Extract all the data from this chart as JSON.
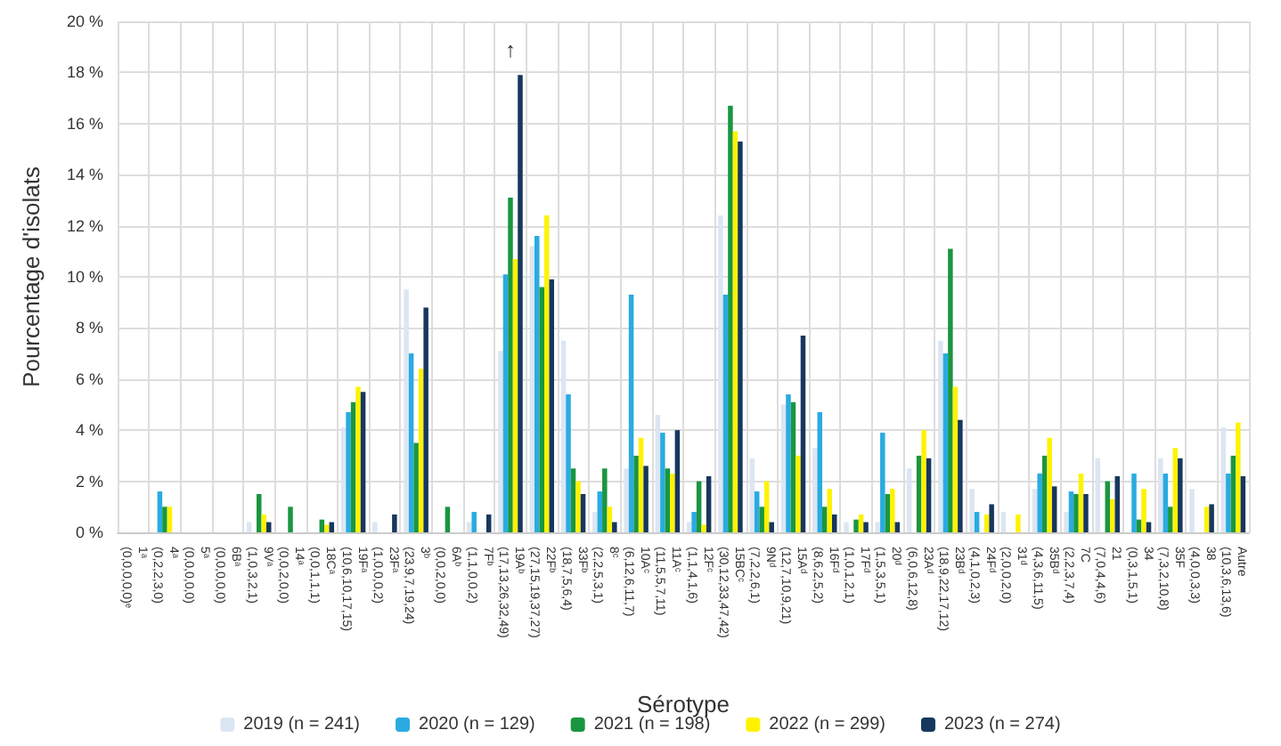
{
  "chart_data": {
    "type": "bar",
    "xlabel": "Sérotype",
    "ylabel": "Pourcentage d'isolats",
    "categories": [
      "1ᵃ\n(0,0,0,0,0)ᵉ",
      "4ᵃ\n(0,2,2,3,0)",
      "5ᵃ\n(0,0,0,0,0)",
      "6Bᵃ\n(0,0,0,0,0)",
      "9Vᵃ\n(1,0,3,2,1)",
      "14ᵃ\n(0,0,2,0,0)",
      "18Cᵃ\n(0,0,1,1,1)",
      "19Fᵃ\n(10,6,10,17,15)",
      "23Fᵃ\n(1,0,0,0,2)",
      "3ᵇ\n(23,9,7,19,24)",
      "6Aᵇ\n(0,0,2,0,0)",
      "7Fᵇ\n(1,1,0,0,2)",
      "19Aᵇ\n(17,13,26,32,49)",
      "22Fᵇ\n(27,15,19,37,27)",
      "33Fᵇ\n(18,7,5,6,4)",
      "8ᶜ\n(2,2,5,3,1)",
      "10Aᶜ\n(6,12,6,11,7)",
      "11Aᶜ\n(11,5,5,7,11)",
      "12Fᶜ\n(1,1,4,1,6)",
      "15BCᶜ\n(30,12,33,47,42)",
      "9Nᵈ\n(7,2,2,6,1)",
      "15Aᵈ\n(12,7,10,9,21)",
      "16Fᵈ\n(8,6,2,5,2)",
      "17Fᵈ\n(1,0,1,2,1)",
      "20ᵈ\n(1,5,3,5,1)",
      "23Aᵈ\n(6,0,6,12,8)",
      "23Bᵈ\n(18,9,22,17,12)",
      "24Fᵈ\n(4,1,0,2,3)",
      "31ᵈ\n(2,0,0,2,0)",
      "35Bᵈ\n(4,3,6,11,5)",
      "7C\n(2,2,3,7,4)",
      "21\n(7,0,4,4,6)",
      "34\n(0,3,1,5,1)",
      "35F\n(7,3,2,10,8)",
      "38\n(4,0,0,3,3)",
      "Autre\n(10,3,6,13,6)"
    ],
    "series": [
      {
        "name": "2019 (n = 241)",
        "color": "#dce6f2",
        "values": [
          0,
          0,
          0,
          0,
          0.4,
          0,
          0,
          4.1,
          0.4,
          9.5,
          0,
          0.4,
          7.1,
          11.2,
          7.5,
          0.8,
          2.5,
          4.6,
          0.4,
          12.4,
          2.9,
          5.0,
          3.3,
          0.4,
          0.4,
          2.5,
          7.5,
          1.7,
          0.8,
          1.7,
          0.8,
          2.9,
          0,
          2.9,
          1.7,
          4.1
        ]
      },
      {
        "name": "2020 (n = 129)",
        "color": "#29abe2",
        "values": [
          0,
          1.6,
          0,
          0,
          0,
          0,
          0,
          4.7,
          0,
          7.0,
          0,
          0.8,
          10.1,
          11.6,
          5.4,
          1.6,
          9.3,
          3.9,
          0.8,
          9.3,
          1.6,
          5.4,
          4.7,
          0,
          3.9,
          0,
          7.0,
          0.8,
          0,
          2.3,
          1.6,
          0,
          2.3,
          2.3,
          0,
          2.3
        ]
      },
      {
        "name": "2021 (n = 198)",
        "color": "#1a9641",
        "values": [
          0,
          1.0,
          0,
          0,
          1.5,
          1.0,
          0.5,
          5.1,
          0,
          3.5,
          1.0,
          0,
          13.1,
          9.6,
          2.5,
          2.5,
          3.0,
          2.5,
          2.0,
          16.7,
          1.0,
          5.1,
          1.0,
          0.5,
          1.5,
          3.0,
          11.1,
          0,
          0,
          3.0,
          1.5,
          2.0,
          0.5,
          1.0,
          0,
          3.0
        ]
      },
      {
        "name": "2022 (n = 299)",
        "color": "#fff200",
        "values": [
          0,
          1.0,
          0,
          0,
          0.7,
          0,
          0.3,
          5.7,
          0,
          6.4,
          0,
          0,
          10.7,
          12.4,
          2.0,
          1.0,
          3.7,
          2.3,
          0.3,
          15.7,
          2.0,
          3.0,
          1.7,
          0.7,
          1.7,
          4.0,
          5.7,
          0.7,
          0.7,
          3.7,
          2.3,
          1.3,
          1.7,
          3.3,
          1.0,
          4.3
        ]
      },
      {
        "name": "2023 (n = 274)",
        "color": "#17375e",
        "values": [
          0,
          0,
          0,
          0,
          0.4,
          0,
          0.4,
          5.5,
          0.7,
          8.8,
          0,
          0.7,
          17.9,
          9.9,
          1.5,
          0.4,
          2.6,
          4.0,
          2.2,
          15.3,
          0.4,
          7.7,
          0.7,
          0.4,
          0.4,
          2.9,
          4.4,
          1.1,
          0,
          1.8,
          1.5,
          2.2,
          0.4,
          2.9,
          1.1,
          2.2
        ]
      }
    ],
    "ylim": [
      0,
      20
    ],
    "yticks": [
      {
        "value": 0,
        "label": "0 %"
      },
      {
        "value": 2,
        "label": "2 %"
      },
      {
        "value": 4,
        "label": "4 %"
      },
      {
        "value": 6,
        "label": "6 %"
      },
      {
        "value": 8,
        "label": "8 %"
      },
      {
        "value": 10,
        "label": "10 %"
      },
      {
        "value": 12,
        "label": "12 %"
      },
      {
        "value": 14,
        "label": "14 %"
      },
      {
        "value": 16,
        "label": "16 %"
      },
      {
        "value": 18,
        "label": "18 %"
      },
      {
        "value": 20,
        "label": "20 %"
      }
    ],
    "annotations": [
      {
        "text": "↑",
        "x": "19Aᵇ\n(17,13,26,32,49)",
        "y": 17.9
      }
    ],
    "grid": true,
    "legend": "bottom"
  }
}
